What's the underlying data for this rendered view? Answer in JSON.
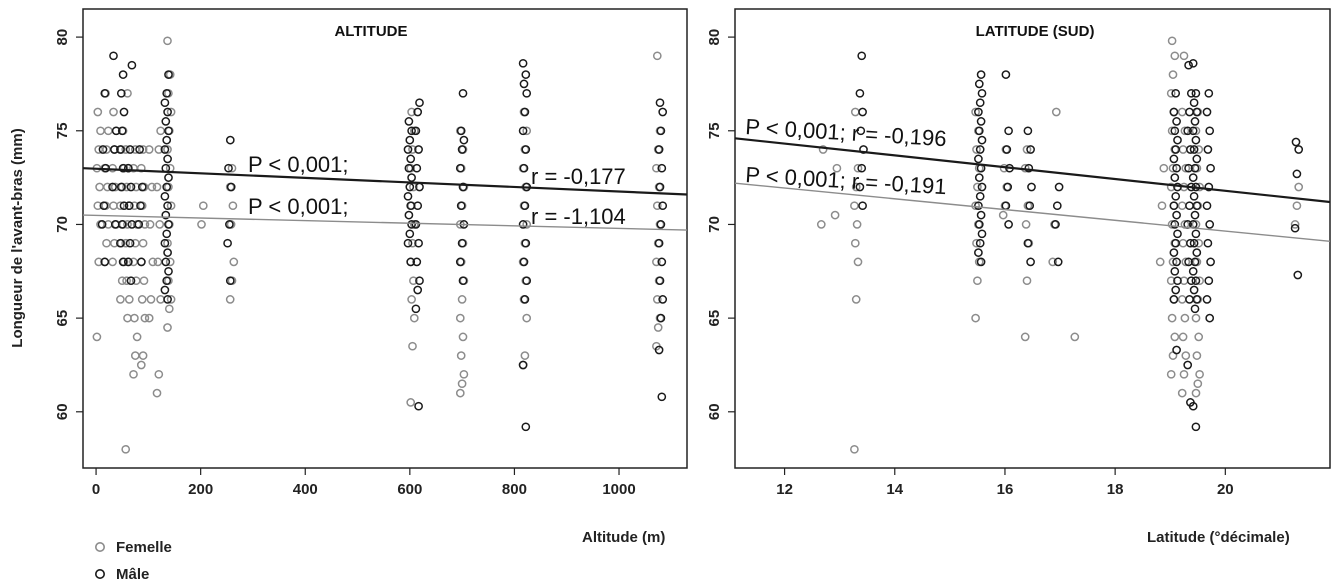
{
  "chart_data": [
    {
      "type": "scatter",
      "title": "ALTITUDE",
      "xlabel": "Altitude (m)",
      "ylabel": "Longueur de l'avant-bras (mm)",
      "xlim": [
        -25,
        1130
      ],
      "ylim": [
        57,
        81.5
      ],
      "xticks": [
        "0",
        "200",
        "400",
        "600",
        "800",
        "1000"
      ],
      "yticks": [
        "60",
        "65",
        "70",
        "75",
        "80"
      ],
      "series": [
        {
          "name": "Femelle",
          "color": "#8c8c8c",
          "columns": [
            {
              "x": 5,
              "values": [
                64,
                68,
                70,
                71,
                72,
                73,
                74,
                75,
                76
              ]
            },
            {
              "x": 20,
              "values": [
                68,
                69,
                70,
                71,
                72,
                73,
                74,
                75,
                77
              ]
            },
            {
              "x": 35,
              "values": [
                68,
                69,
                70,
                71,
                72,
                73,
                74,
                75,
                76
              ]
            },
            {
              "x": 50,
              "values": [
                66,
                67,
                68,
                69,
                70,
                71,
                72,
                73,
                74,
                75
              ]
            },
            {
              "x": 60,
              "values": [
                58,
                65,
                66,
                67,
                68,
                69,
                70,
                71,
                72,
                73,
                74,
                77
              ]
            },
            {
              "x": 75,
              "values": [
                62,
                63,
                64,
                65,
                67,
                68,
                69,
                70,
                71,
                72,
                73,
                74
              ]
            },
            {
              "x": 90,
              "values": [
                62.5,
                63,
                65,
                66,
                67,
                68,
                69,
                70,
                71,
                72,
                73,
                74
              ]
            },
            {
              "x": 105,
              "values": [
                65,
                66,
                68,
                70,
                72,
                74
              ]
            },
            {
              "x": 120,
              "values": [
                61,
                62,
                66,
                68,
                70,
                72,
                74,
                75
              ]
            },
            {
              "x": 140,
              "values": [
                64.5,
                65.5,
                66,
                67,
                68,
                69,
                70,
                71,
                72,
                73,
                74,
                75,
                76,
                77,
                78,
                79.8
              ]
            },
            {
              "x": 205,
              "values": [
                70,
                71
              ]
            },
            {
              "x": 260,
              "values": [
                66,
                67,
                68,
                70,
                71,
                72,
                73
              ]
            },
            {
              "x": 605,
              "values": [
                60.5,
                63.5,
                65,
                66,
                67,
                68,
                69,
                70,
                71,
                72,
                73,
                74,
                75,
                76
              ]
            },
            {
              "x": 700,
              "values": [
                61,
                61.5,
                62,
                63,
                64,
                65,
                66,
                67,
                68,
                69,
                70,
                71,
                72,
                73,
                74,
                75
              ]
            },
            {
              "x": 820,
              "values": [
                62.5,
                63,
                65,
                66,
                67,
                68,
                69,
                70,
                71,
                72,
                73,
                74,
                75,
                76
              ]
            },
            {
              "x": 1075,
              "values": [
                63.5,
                64.5,
                65,
                66,
                67,
                68,
                69,
                70,
                71,
                72,
                73,
                74,
                75,
                79
              ]
            }
          ]
        },
        {
          "name": "Mâle",
          "color": "#1a1a1a",
          "columns": [
            {
              "x": 15,
              "values": [
                68,
                70,
                71,
                73,
                74,
                77
              ]
            },
            {
              "x": 35,
              "values": [
                70,
                72,
                74,
                75,
                79
              ]
            },
            {
              "x": 50,
              "values": [
                68,
                69,
                70,
                71,
                72,
                73,
                74,
                75,
                76,
                77,
                78
              ]
            },
            {
              "x": 65,
              "values": [
                67,
                68,
                69,
                70,
                71,
                72,
                73,
                74,
                78.5
              ]
            },
            {
              "x": 85,
              "values": [
                68,
                70,
                71,
                72,
                74
              ]
            },
            {
              "x": 135,
              "values": [
                66,
                66.5,
                67,
                67.5,
                68,
                68.5,
                69,
                69.5,
                70,
                70.5,
                71,
                71.5,
                72,
                72.5,
                73,
                73.5,
                74,
                74.5,
                75,
                75.5,
                76,
                76.5,
                77,
                78
              ]
            },
            {
              "x": 255,
              "values": [
                67,
                69,
                70,
                72,
                73,
                74.5
              ]
            },
            {
              "x": 600,
              "values": [
                68,
                69,
                69.5,
                70,
                70.5,
                71,
                71.5,
                72,
                72.5,
                73,
                73.5,
                74,
                74.5,
                75,
                75.5
              ]
            },
            {
              "x": 615,
              "values": [
                60.3,
                65.5,
                66.5,
                67,
                68,
                69,
                70,
                71,
                72,
                73,
                74,
                75,
                76,
                76.5
              ]
            },
            {
              "x": 700,
              "values": [
                67,
                68,
                69,
                70,
                71,
                72,
                73,
                74,
                74.5,
                75,
                77
              ]
            },
            {
              "x": 820,
              "values": [
                59.2,
                62.5,
                66,
                67,
                68,
                69,
                70,
                71,
                72,
                73,
                74,
                75,
                76,
                77,
                77.5,
                78,
                78.6
              ]
            },
            {
              "x": 1080,
              "values": [
                60.8,
                63.3,
                65,
                66,
                67,
                68,
                69,
                70,
                71,
                72,
                73,
                74,
                75,
                76,
                76.5
              ]
            }
          ]
        }
      ],
      "regression": [
        {
          "series": "Mâle",
          "x": [
            -25,
            1130
          ],
          "y": [
            73.0,
            71.6
          ]
        },
        {
          "series": "Femelle",
          "x": [
            -25,
            1130
          ],
          "y": [
            70.5,
            69.7
          ]
        }
      ],
      "annotations": [
        "P < 0,001;",
        "r = -0,177",
        "P < 0,001;",
        "r = -1,104"
      ]
    },
    {
      "type": "scatter",
      "title": "LATITUDE (SUD)",
      "xlabel": "Latitude (°décimale)",
      "xlim": [
        11.1,
        21.9
      ],
      "ylim": [
        57,
        81.5
      ],
      "xticks": [
        "12",
        "14",
        "16",
        "18",
        "20"
      ],
      "yticks": [
        "60",
        "65",
        "70",
        "75",
        "80"
      ],
      "series": [
        {
          "name": "Femelle",
          "color": "#8c8c8c",
          "columns": [
            {
              "x": 12.7,
              "values": [
                70,
                74
              ]
            },
            {
              "x": 12.95,
              "values": [
                70.5,
                73
              ]
            },
            {
              "x": 13.3,
              "values": [
                58,
                66,
                68,
                69,
                70,
                71,
                72,
                73,
                76
              ]
            },
            {
              "x": 15.5,
              "values": [
                65,
                67,
                68,
                69,
                70,
                71,
                72,
                73,
                74,
                75,
                76
              ]
            },
            {
              "x": 16.0,
              "values": [
                70.5,
                71,
                72,
                73,
                74
              ]
            },
            {
              "x": 16.4,
              "values": [
                64,
                67,
                69,
                70,
                71,
                73,
                74
              ]
            },
            {
              "x": 16.9,
              "values": [
                68,
                70,
                76
              ]
            },
            {
              "x": 17.3,
              "values": [
                64
              ]
            },
            {
              "x": 18.85,
              "values": [
                68,
                71,
                73
              ]
            },
            {
              "x": 19.05,
              "values": [
                62,
                63,
                64,
                65,
                66,
                67,
                68,
                69,
                70,
                71,
                72,
                73,
                74,
                75,
                76,
                77,
                78,
                79,
                79.8
              ]
            },
            {
              "x": 19.25,
              "values": [
                61,
                62,
                63,
                64,
                65,
                66,
                67,
                68,
                69,
                70,
                71,
                72,
                73,
                74,
                75,
                76,
                79
              ]
            },
            {
              "x": 19.5,
              "values": [
                61,
                61.5,
                62,
                63,
                64,
                65,
                66,
                67,
                68,
                69,
                70,
                71,
                72,
                73,
                74,
                75,
                76
              ]
            },
            {
              "x": 21.3,
              "values": [
                70,
                71,
                72
              ]
            }
          ]
        },
        {
          "name": "Mâle",
          "color": "#1a1a1a",
          "columns": [
            {
              "x": 13.4,
              "values": [
                71,
                72,
                73,
                74,
                75,
                76,
                77,
                79
              ]
            },
            {
              "x": 15.55,
              "values": [
                68,
                68.5,
                69,
                69.5,
                70,
                70.5,
                71,
                71.5,
                72,
                72.5,
                73,
                73.5,
                74,
                74.5,
                75,
                75.5,
                76,
                76.5,
                77,
                77.5,
                78
              ]
            },
            {
              "x": 16.05,
              "values": [
                70,
                71,
                72,
                73,
                74,
                75,
                78
              ]
            },
            {
              "x": 16.45,
              "values": [
                68,
                69,
                71,
                72,
                73,
                74,
                75
              ]
            },
            {
              "x": 16.95,
              "values": [
                68,
                70,
                71,
                72
              ]
            },
            {
              "x": 19.1,
              "values": [
                63.3,
                66,
                66.5,
                67,
                67.5,
                68,
                68.5,
                69,
                69.5,
                70,
                70.5,
                71,
                71.5,
                72,
                72.5,
                73,
                73.5,
                74,
                74.5,
                75,
                75.5,
                76,
                77
              ]
            },
            {
              "x": 19.35,
              "values": [
                60.5,
                62.5,
                66,
                67,
                68,
                69,
                70,
                71,
                72,
                73,
                74,
                75,
                76,
                77,
                78.5
              ]
            },
            {
              "x": 19.45,
              "values": [
                59.2,
                60.3,
                65.5,
                66,
                66.5,
                67,
                67.5,
                68,
                68.5,
                69,
                69.5,
                70,
                70.5,
                71,
                71.5,
                72,
                72.5,
                73,
                73.5,
                74,
                74.5,
                75,
                75.5,
                76,
                76.5,
                77,
                78.6
              ]
            },
            {
              "x": 19.7,
              "values": [
                65,
                66,
                67,
                68,
                69,
                70,
                71,
                72,
                73,
                74,
                75,
                76,
                77
              ]
            },
            {
              "x": 21.3,
              "values": [
                67.3,
                69.8,
                72.7,
                74,
                74.4
              ]
            }
          ]
        }
      ],
      "regression": [
        {
          "series": "Mâle",
          "x": [
            11.1,
            21.9
          ],
          "y": [
            74.6,
            71.2
          ]
        },
        {
          "series": "Femelle",
          "x": [
            11.1,
            21.9
          ],
          "y": [
            72.2,
            69.1
          ]
        }
      ],
      "annotations": [
        "P < 0,001; r = -0,196",
        "P < 0,001; r = -0,191"
      ]
    }
  ],
  "legend": {
    "placement": "bottom-left",
    "items": [
      {
        "label": "Femelle",
        "color": "#8c8c8c"
      },
      {
        "label": "Mâle",
        "color": "#1a1a1a"
      }
    ]
  }
}
